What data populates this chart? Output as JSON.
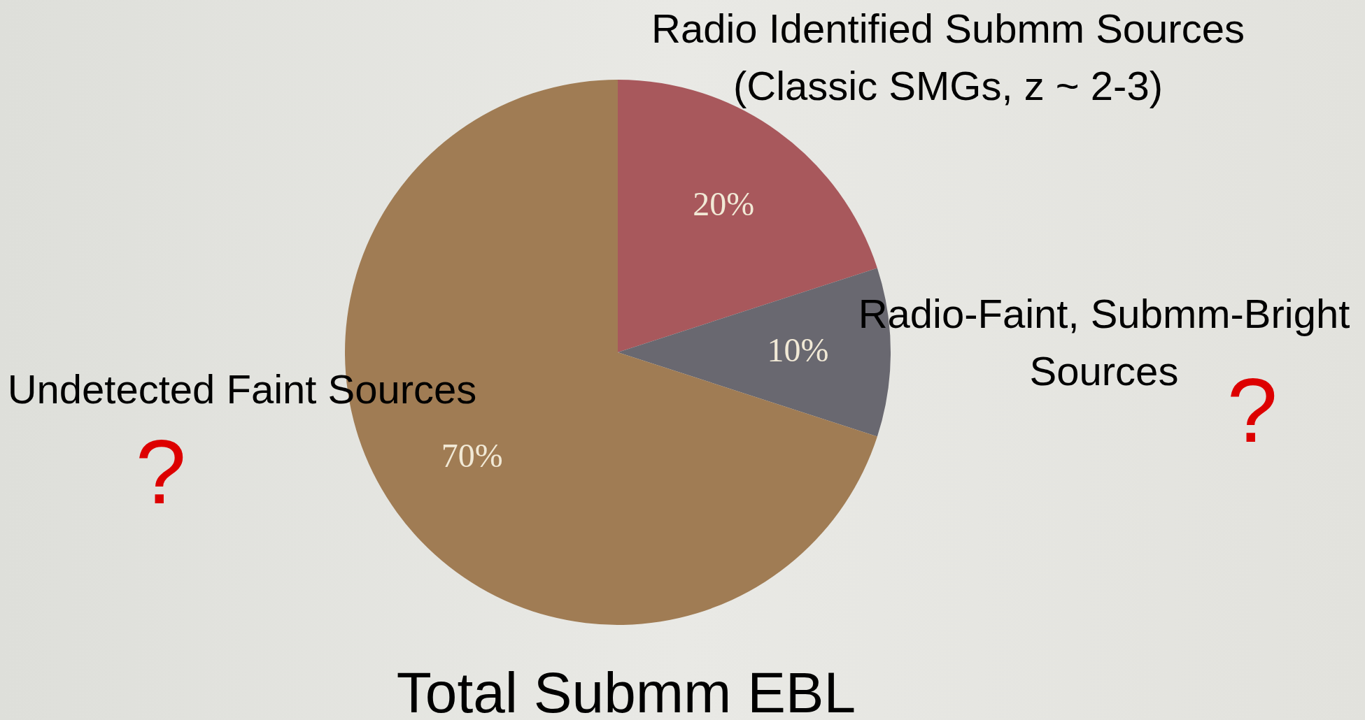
{
  "chart_data": {
    "type": "pie",
    "title": "Total Submm EBL",
    "categories": [
      "Radio Identified Submm Sources (Classic SMGs, z ~ 2-3)",
      "Radio-Faint, Submm-Bright Sources",
      "Undetected Faint Sources"
    ],
    "values": [
      20,
      10,
      70
    ],
    "colors": [
      "#a8585c",
      "#696870",
      "#a07c54"
    ],
    "value_labels": [
      "20%",
      "10%",
      "70%"
    ],
    "annotations": [
      "?",
      "?"
    ]
  }
}
